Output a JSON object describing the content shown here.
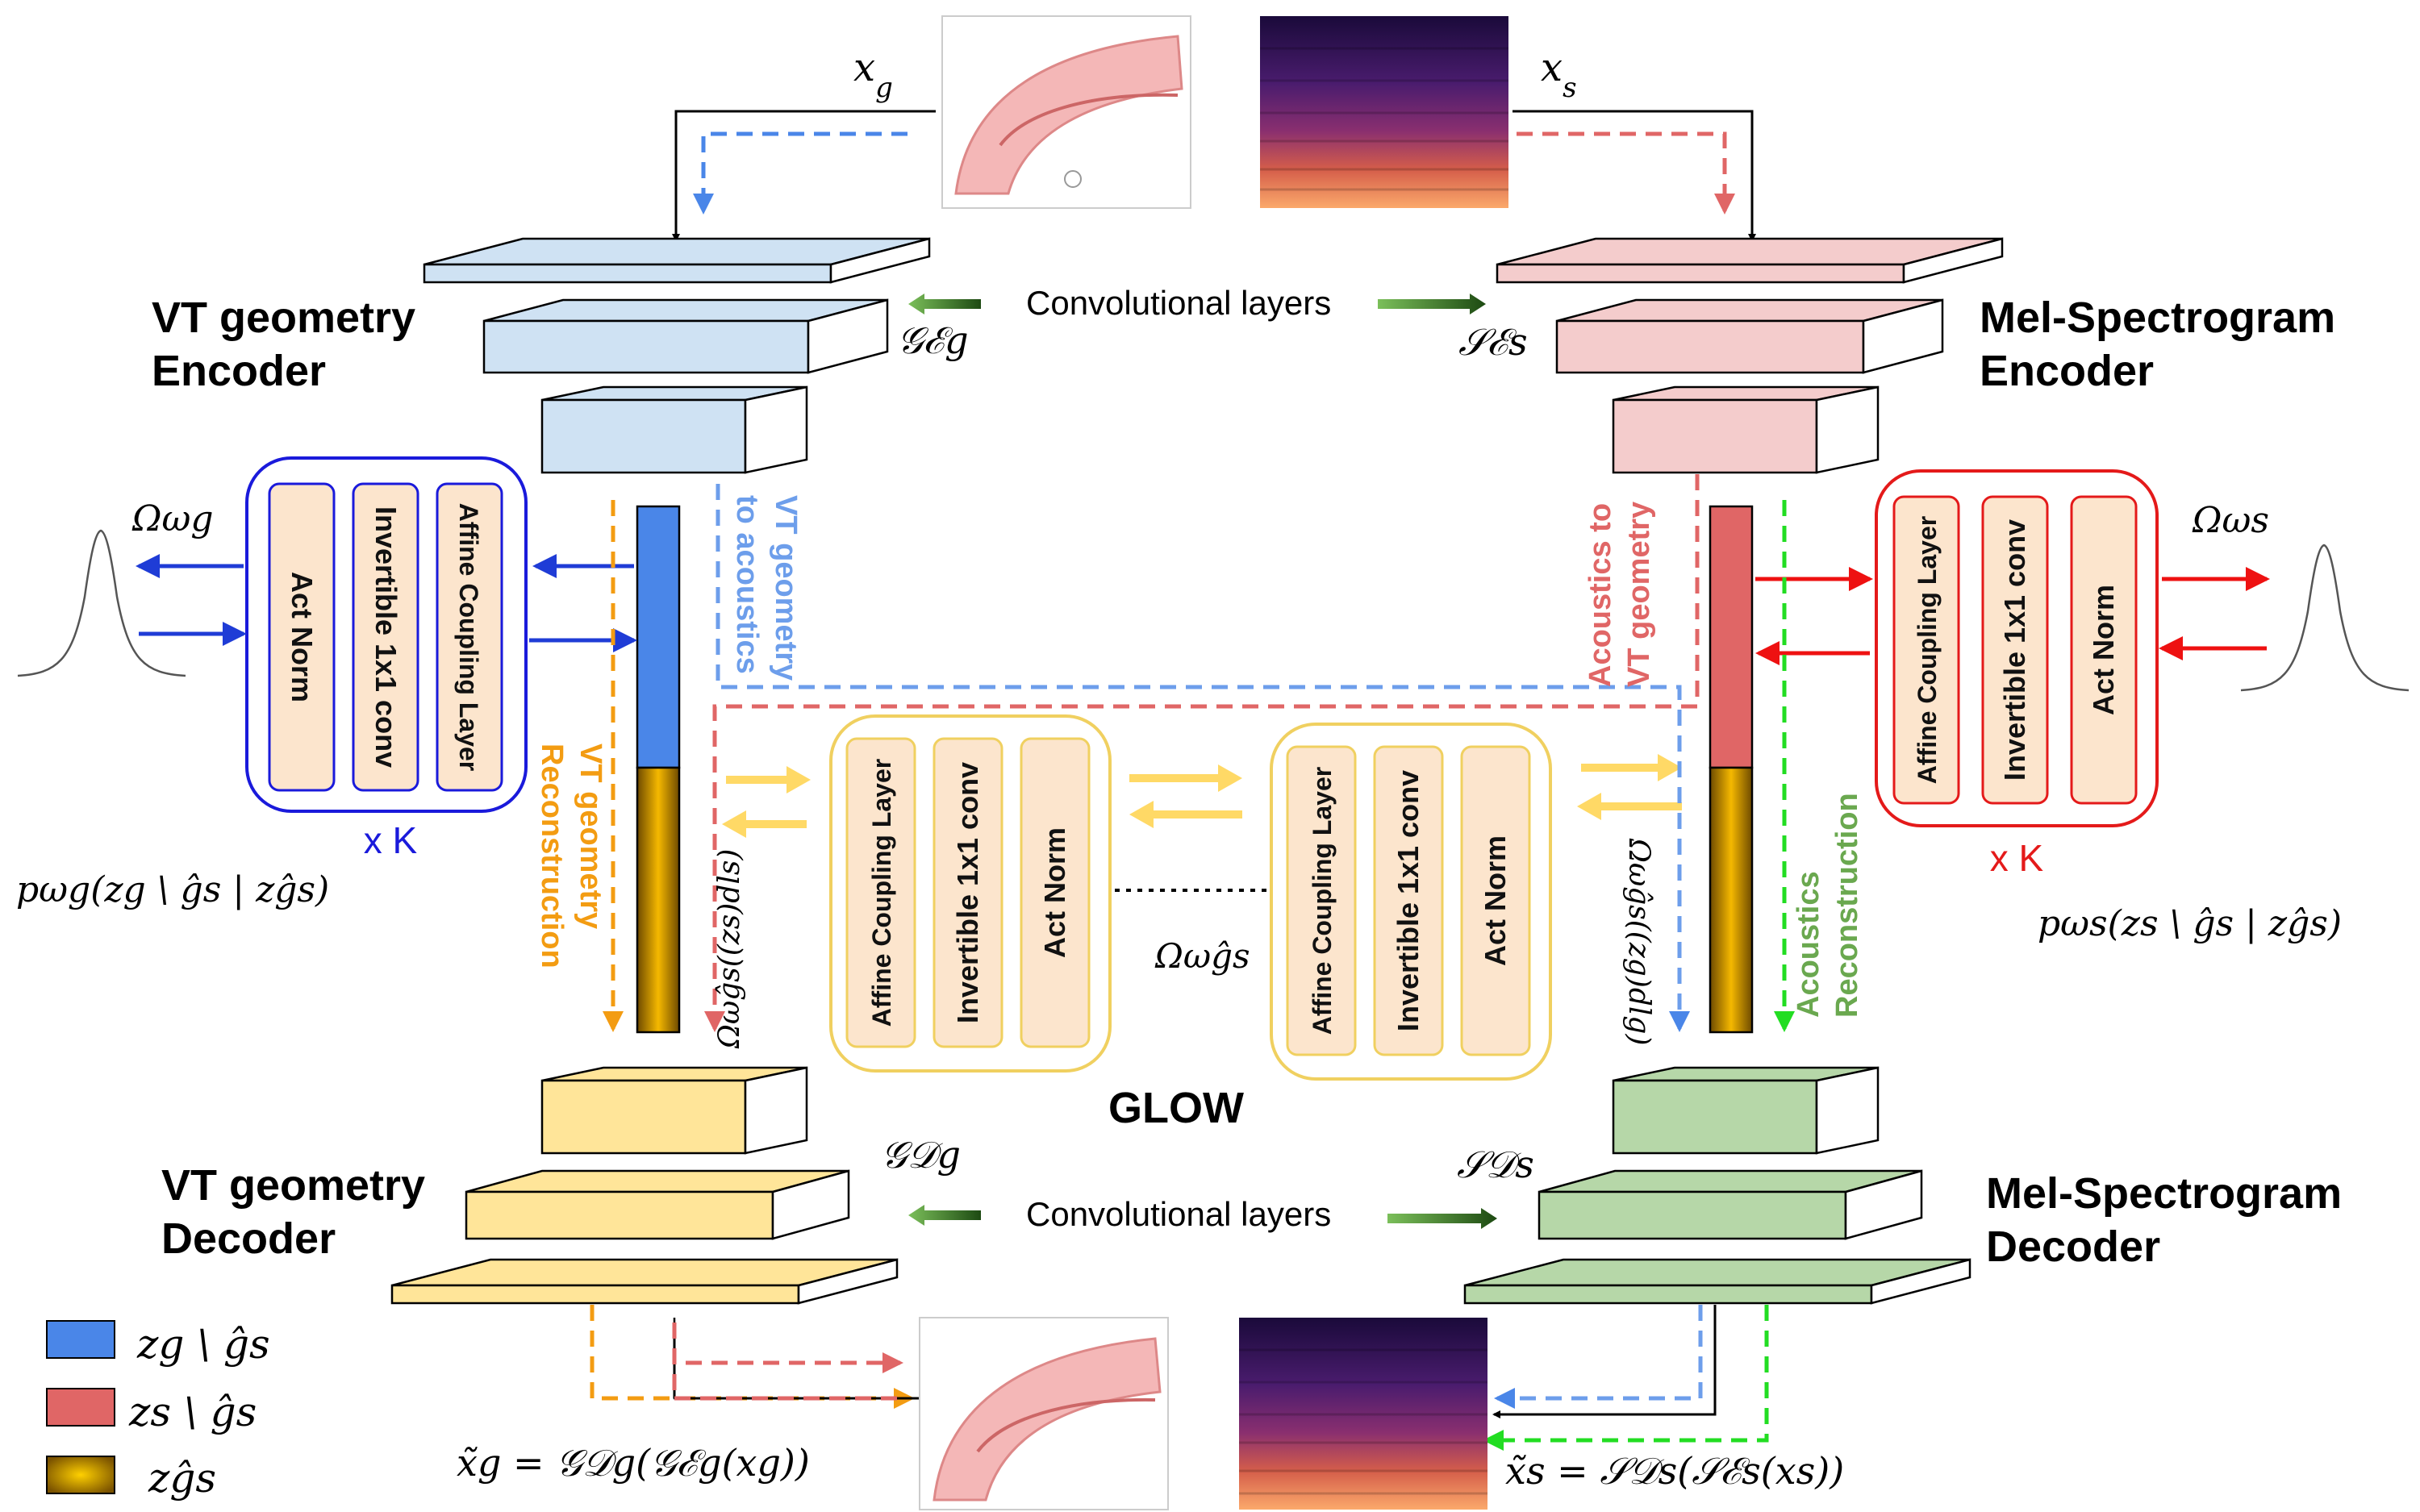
{
  "title": "",
  "encoders": {
    "vt": {
      "title_line1": "VT geometry",
      "title_line2": "Encoder",
      "symbol": "𝒢ℰg"
    },
    "mel": {
      "title_line1": "Mel-Spectrogram",
      "title_line2": "Encoder",
      "symbol": "𝒮ℰs"
    }
  },
  "decoders": {
    "vt": {
      "title_line1": "VT geometry",
      "title_line2": "Decoder",
      "symbol": "𝒢𝒟g"
    },
    "mel": {
      "title_line1": "Mel-Spectrogram",
      "title_line2": "Decoder",
      "symbol": "𝒮𝒟s"
    }
  },
  "conv_label_top": "Convolutional layers",
  "conv_label_bottom": "Convolutional layers",
  "inputs": {
    "xg": "xg",
    "xs": "xs"
  },
  "flow_left": {
    "layers": [
      "Act Norm",
      "Invertible 1x1 conv",
      "Affine Coupling Layer"
    ],
    "repeat": "x K",
    "omega": "Ωωg",
    "prob": "pωg(zg \\ ĝs | zĝs)"
  },
  "flow_right": {
    "layers": [
      "Affine Coupling Layer",
      "Invertible 1x1 conv",
      "Act Norm"
    ],
    "repeat": "x K",
    "omega": "Ωωs",
    "prob": "pωs(zs \\ ĝs | zĝs)"
  },
  "glow": {
    "label": "GLOW",
    "block1": [
      "Affine Coupling Layer",
      "Invertible 1x1 conv",
      "Act Norm"
    ],
    "block2": [
      "Affine Coupling Layer",
      "Invertible 1x1 conv",
      "Act Norm"
    ],
    "omega": "Ωωĝs",
    "left_fn": "Ωωĝs((zs)dls)",
    "right_fn": "Ωωĝs((zg)dlg)"
  },
  "path_labels": {
    "vt_to_acoustics_1": "VT geometry",
    "vt_to_acoustics_2": "to acoustics",
    "acoustics_to_vt_1": "Acoustics to",
    "acoustics_to_vt_2": "VT geometry",
    "vt_recon_1": "VT geometry",
    "vt_recon_2": "Reconstruction",
    "ac_recon_1": "Acoustics",
    "ac_recon_2": "Reconstruction"
  },
  "outputs": {
    "xg_tilde": "x̃g  =  𝒢𝒟g(𝒢ℰg(xg))",
    "xs_tilde": "x̃s  =  𝒮𝒟s(𝒮ℰs(xs))"
  },
  "legend": [
    {
      "label": "zg \\ ĝs",
      "color": "#4a86e8"
    },
    {
      "label": "zs \\ ĝs",
      "color": "#e06666"
    },
    {
      "label": "zĝs",
      "color": "#c89a10"
    }
  ],
  "colors": {
    "blue": "#4a86e8",
    "red": "#e06666",
    "orange": "#f39c12",
    "green": "#33cc33",
    "vt_enc": "#cfe2f3",
    "mel_enc": "#f4cccc",
    "vt_dec": "#ffe599",
    "mel_dec": "#b6d7a8",
    "layer_fill": "#fce5cd"
  }
}
